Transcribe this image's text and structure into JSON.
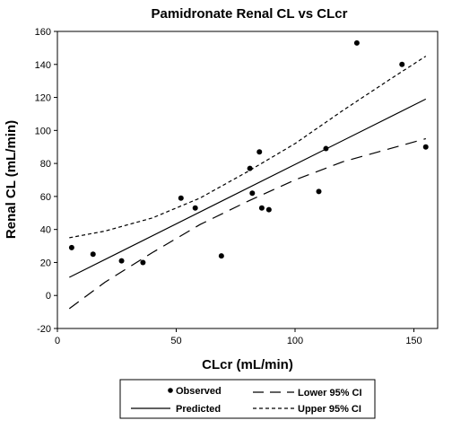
{
  "chart_data": {
    "type": "scatter",
    "title": "Pamidronate Renal CL vs CLcr",
    "xlabel": "CLcr (mL/min)",
    "ylabel": "Renal CL (mL/min)",
    "xlim": [
      0,
      160
    ],
    "ylim": [
      -20,
      160
    ],
    "x_ticks": [
      0,
      50,
      100,
      150
    ],
    "y_ticks": [
      -20,
      0,
      20,
      40,
      60,
      80,
      100,
      120,
      140,
      160
    ],
    "grid": false,
    "legend_position": "bottom",
    "series": [
      {
        "name": "Observed",
        "kind": "points",
        "points": [
          {
            "x": 6,
            "y": 29
          },
          {
            "x": 15,
            "y": 25
          },
          {
            "x": 27,
            "y": 21
          },
          {
            "x": 36,
            "y": 20
          },
          {
            "x": 52,
            "y": 59
          },
          {
            "x": 58,
            "y": 53
          },
          {
            "x": 69,
            "y": 24
          },
          {
            "x": 81,
            "y": 77
          },
          {
            "x": 82,
            "y": 62
          },
          {
            "x": 85,
            "y": 87
          },
          {
            "x": 86,
            "y": 53
          },
          {
            "x": 89,
            "y": 52
          },
          {
            "x": 110,
            "y": 63
          },
          {
            "x": 113,
            "y": 89
          },
          {
            "x": 126,
            "y": 153
          },
          {
            "x": 145,
            "y": 140
          },
          {
            "x": 155,
            "y": 90
          }
        ]
      },
      {
        "name": "Predicted",
        "kind": "line",
        "style": "solid",
        "points": [
          {
            "x": 5,
            "y": 11
          },
          {
            "x": 155,
            "y": 119
          }
        ]
      },
      {
        "name": "Lower 95% CI",
        "kind": "line",
        "style": "longdash",
        "points": [
          {
            "x": 5,
            "y": -8
          },
          {
            "x": 20,
            "y": 8
          },
          {
            "x": 40,
            "y": 26
          },
          {
            "x": 60,
            "y": 43
          },
          {
            "x": 80,
            "y": 57
          },
          {
            "x": 100,
            "y": 70
          },
          {
            "x": 120,
            "y": 81
          },
          {
            "x": 140,
            "y": 89
          },
          {
            "x": 155,
            "y": 95
          }
        ]
      },
      {
        "name": "Upper 95% CI",
        "kind": "line",
        "style": "shortdash",
        "points": [
          {
            "x": 5,
            "y": 35
          },
          {
            "x": 20,
            "y": 39
          },
          {
            "x": 40,
            "y": 47
          },
          {
            "x": 60,
            "y": 59
          },
          {
            "x": 80,
            "y": 75
          },
          {
            "x": 100,
            "y": 92
          },
          {
            "x": 120,
            "y": 112
          },
          {
            "x": 140,
            "y": 131
          },
          {
            "x": 155,
            "y": 145
          }
        ]
      }
    ]
  },
  "legend": {
    "observed": "Observed",
    "predicted": "Predicted",
    "lower_ci": "Lower 95% CI",
    "upper_ci": "Upper 95% CI"
  }
}
